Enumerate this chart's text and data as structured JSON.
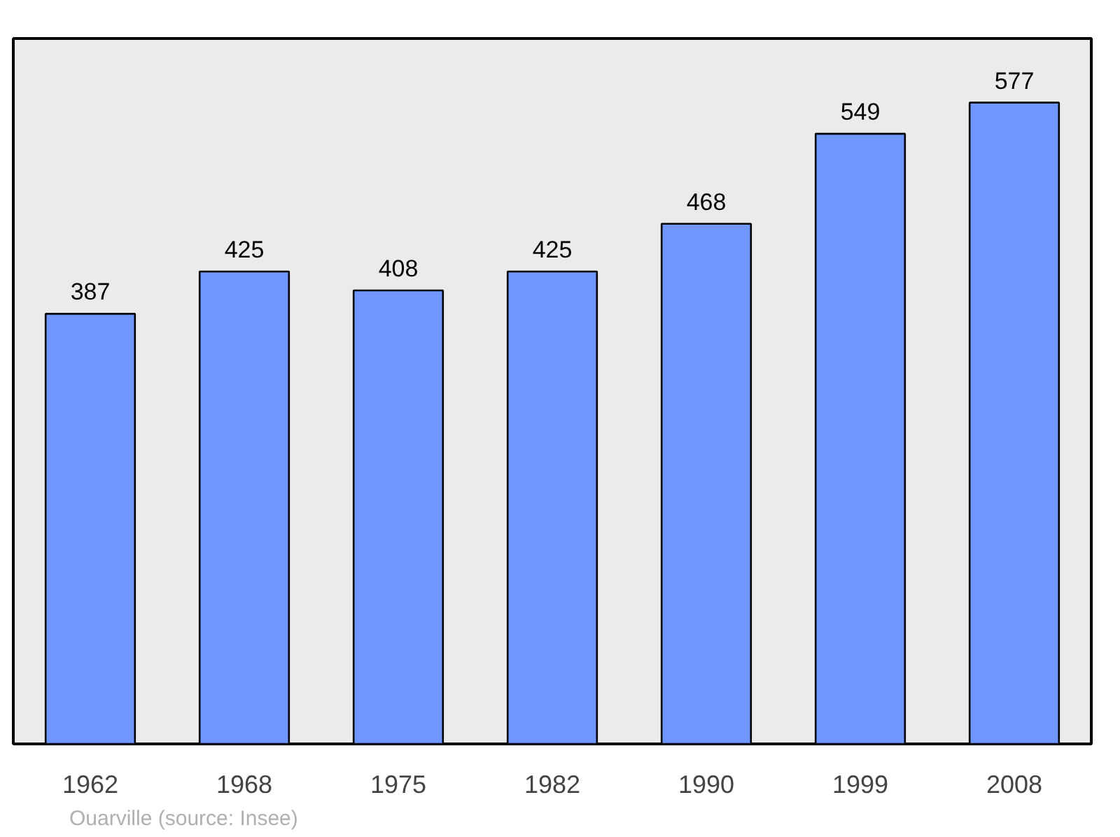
{
  "chart_data": {
    "type": "bar",
    "categories": [
      "1962",
      "1968",
      "1975",
      "1982",
      "1990",
      "1999",
      "2008"
    ],
    "values": [
      387,
      425,
      408,
      425,
      468,
      549,
      577
    ],
    "color": "#6f97ff",
    "data_labels": true,
    "annotations": [
      "Ouarville    (source: Insee)"
    ]
  }
}
